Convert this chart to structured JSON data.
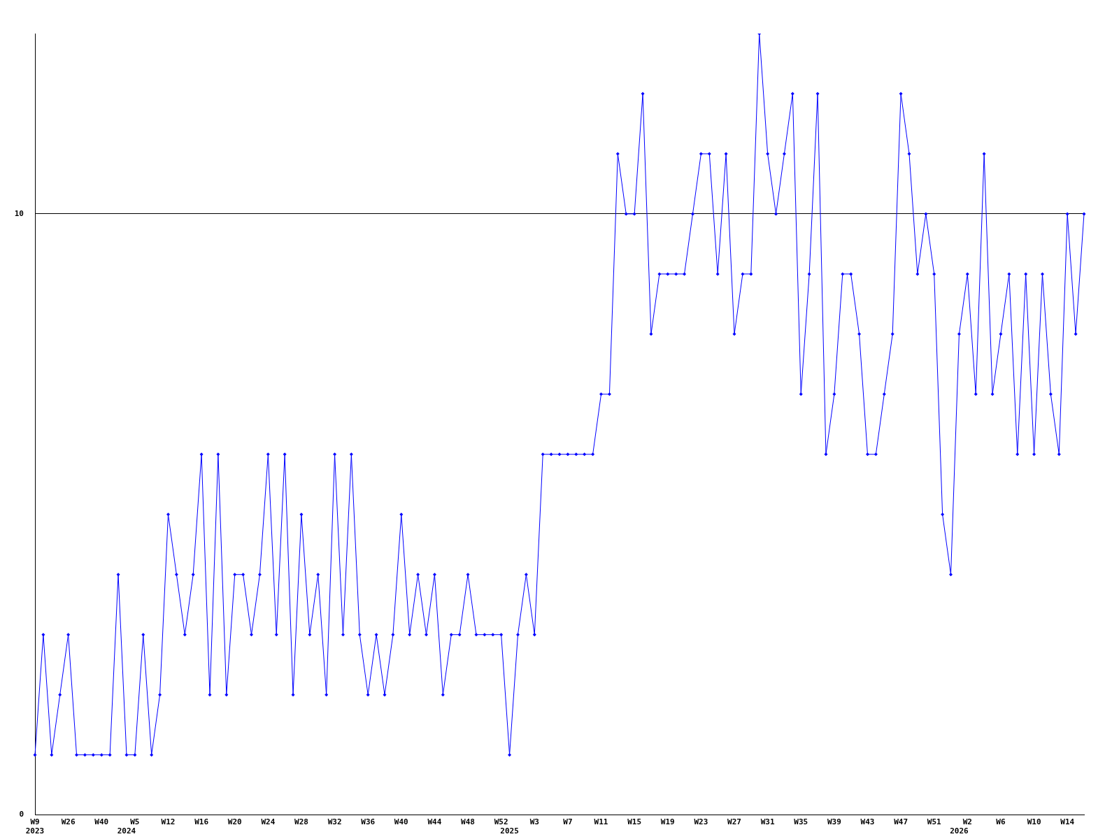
{
  "chart_data": {
    "type": "line",
    "categories": [
      "W9\n2023",
      null,
      null,
      null,
      "W26",
      null,
      null,
      null,
      "W40",
      null,
      null,
      "\n2024",
      "W5",
      null,
      null,
      null,
      "W12",
      null,
      null,
      null,
      "W16",
      null,
      null,
      null,
      "W20",
      null,
      null,
      null,
      "W24",
      null,
      null,
      null,
      "W28",
      null,
      null,
      null,
      "W32",
      null,
      null,
      null,
      "W36",
      null,
      null,
      null,
      "W40",
      null,
      null,
      null,
      "W44",
      null,
      null,
      null,
      "W48",
      null,
      null,
      null,
      "W52",
      "\n2025",
      null,
      null,
      "W3",
      null,
      null,
      null,
      "W7",
      null,
      null,
      null,
      "W11",
      null,
      null,
      null,
      "W15",
      null,
      null,
      null,
      "W19",
      null,
      null,
      null,
      "W23",
      null,
      null,
      null,
      "W27",
      null,
      null,
      null,
      "W31",
      null,
      null,
      null,
      "W35",
      null,
      null,
      null,
      "W39",
      null,
      null,
      null,
      "W43",
      null,
      null,
      null,
      "W47",
      null,
      null,
      null,
      "W51",
      null,
      null,
      "\n2026",
      "W2",
      null,
      null,
      null,
      "W6",
      null,
      null,
      null,
      "W10",
      null,
      null,
      null,
      "W14",
      null,
      null
    ],
    "series": [
      {
        "color": "#0000ff",
        "values": [
          1,
          3,
          1,
          2,
          3,
          1,
          1,
          1,
          1,
          1,
          4,
          1,
          1,
          3,
          1,
          2,
          5,
          4,
          3,
          4,
          6,
          2,
          6,
          2,
          4,
          4,
          3,
          4,
          6,
          3,
          6,
          2,
          5,
          3,
          4,
          2,
          6,
          3,
          6,
          3,
          2,
          3,
          2,
          3,
          5,
          3,
          4,
          3,
          4,
          2,
          3,
          3,
          4,
          3,
          3,
          3,
          3,
          1,
          3,
          4,
          3,
          6,
          6,
          6,
          6,
          6,
          6,
          6,
          7,
          7,
          11,
          10,
          10,
          12,
          8,
          9,
          9,
          9,
          9,
          10,
          11,
          11,
          9,
          11,
          8,
          9,
          9,
          13,
          11,
          10,
          11,
          12,
          7,
          9,
          12,
          6,
          7,
          9,
          9,
          8,
          6,
          6,
          7,
          8,
          12,
          11,
          9,
          10,
          9,
          5,
          4,
          8,
          9,
          7,
          11,
          7,
          8,
          9,
          6,
          9,
          6,
          9,
          7,
          6,
          10,
          8,
          10
        ]
      }
    ],
    "ylim": [
      0,
      13
    ],
    "yticks": [
      0,
      10
    ],
    "grid": "y",
    "marker": "diamond",
    "legend": false
  }
}
